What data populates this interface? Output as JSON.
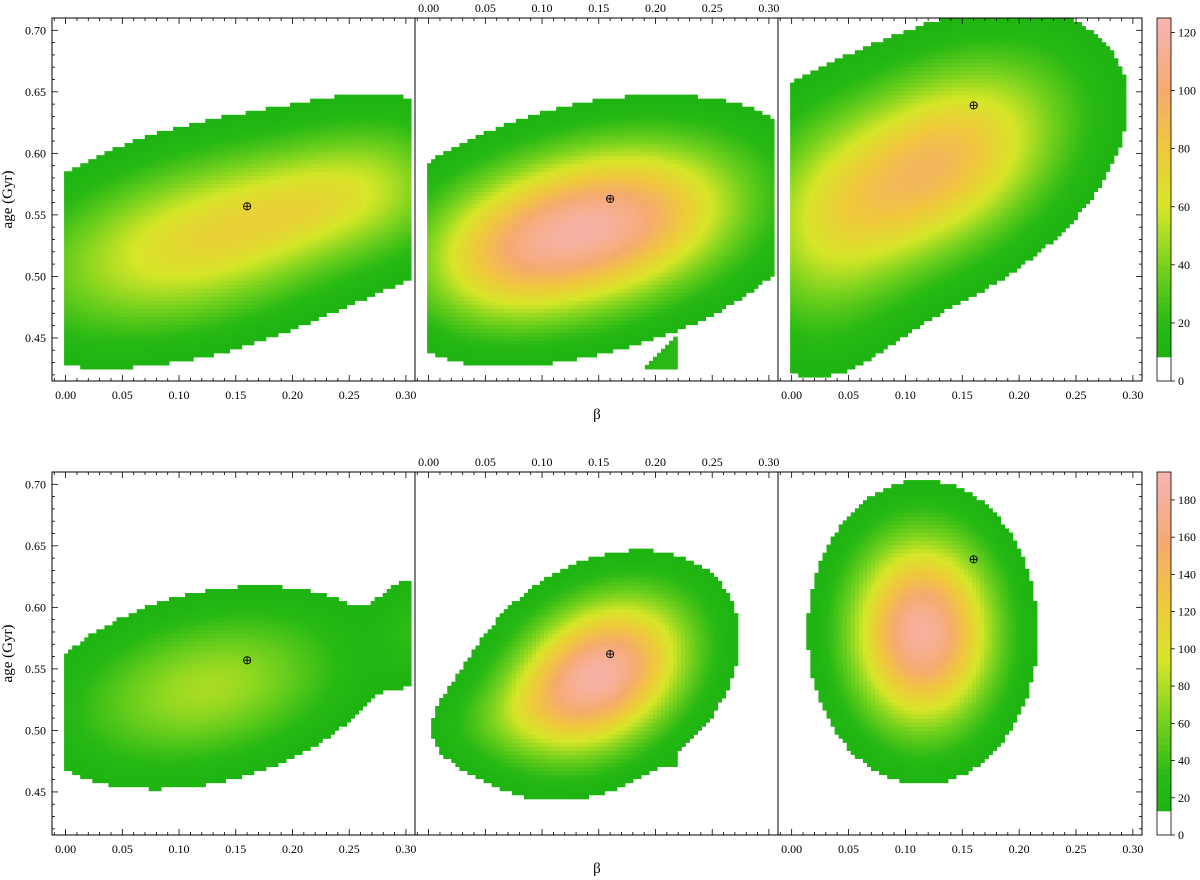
{
  "chart_data": {
    "type": "heatmap",
    "description_free": true,
    "rows": [
      {
        "ylabel": "age (Gyr)",
        "xlabel": "β",
        "ylim": [
          0.415,
          0.71
        ],
        "yticks": [
          "0.45",
          "0.50",
          "0.55",
          "0.60",
          "0.65",
          "0.70"
        ],
        "xlim": [
          -0.012,
          0.308
        ],
        "xticks": [
          "0.00",
          "0.05",
          "0.10",
          "0.15",
          "0.20",
          "0.25",
          "0.30"
        ],
        "colorbar": {
          "min": 0,
          "max": 125,
          "ticks": [
            "0",
            "20",
            "40",
            "60",
            "80",
            "100",
            "120"
          ]
        },
        "panels": [
          {
            "peak": 75,
            "marker": {
              "x": 0.16,
              "y": 0.557
            },
            "blobs": [
              {
                "cx": 0.12,
                "cy": 0.53,
                "sx": 0.105,
                "sy": 0.052,
                "rho": 0.4,
                "amp": 70
              },
              {
                "cx": 0.285,
                "cy": 0.575,
                "sx": 0.05,
                "sy": 0.04,
                "rho": 0.0,
                "amp": 26
              },
              {
                "cx": 0.215,
                "cy": 0.56,
                "sx": 0.05,
                "sy": 0.03,
                "rho": 0.2,
                "amp": 18
              }
            ]
          },
          {
            "peak": 118,
            "marker": {
              "x": 0.16,
              "y": 0.563
            },
            "blobs": [
              {
                "cx": 0.145,
                "cy": 0.54,
                "sx": 0.09,
                "sy": 0.048,
                "rho": 0.3,
                "amp": 116
              },
              {
                "cx": 0.055,
                "cy": 0.51,
                "sx": 0.05,
                "sy": 0.04,
                "rho": 0.0,
                "amp": 20
              }
            ],
            "corner": {
              "x0": 0.19,
              "x1": 0.22,
              "y0": 0.425,
              "y1": 0.455,
              "value": 20
            }
          },
          {
            "peak": 95,
            "marker": {
              "x": 0.16,
              "y": 0.639
            },
            "blobs": [
              {
                "cx": 0.125,
                "cy": 0.59,
                "sx": 0.08,
                "sy": 0.06,
                "rho": 0.4,
                "amp": 90
              },
              {
                "cx": 0.02,
                "cy": 0.53,
                "sx": 0.05,
                "sy": 0.07,
                "rho": 0.0,
                "amp": 28
              }
            ]
          }
        ]
      },
      {
        "ylabel": "age (Gyr)",
        "xlabel": "β",
        "ylim": [
          0.415,
          0.71
        ],
        "yticks": [
          "0.45",
          "0.50",
          "0.55",
          "0.60",
          "0.65",
          "0.70"
        ],
        "xlim": [
          -0.012,
          0.308
        ],
        "xticks": [
          "0.00",
          "0.05",
          "0.10",
          "0.15",
          "0.20",
          "0.25",
          "0.30"
        ],
        "colorbar": {
          "min": 0,
          "max": 195,
          "ticks": [
            "0",
            "20",
            "40",
            "60",
            "80",
            "100",
            "120",
            "140",
            "160",
            "180"
          ]
        },
        "panels": [
          {
            "peak": 80,
            "marker": {
              "x": 0.16,
              "y": 0.557
            },
            "blobs": [
              {
                "cx": 0.125,
                "cy": 0.535,
                "sx": 0.085,
                "sy": 0.045,
                "rho": 0.3,
                "amp": 78
              },
              {
                "cx": 0.305,
                "cy": 0.583,
                "sx": 0.02,
                "sy": 0.03,
                "rho": 0.0,
                "amp": 26
              }
            ]
          },
          {
            "peak": 185,
            "marker": {
              "x": 0.16,
              "y": 0.562
            },
            "blobs": [
              {
                "cx": 0.15,
                "cy": 0.545,
                "sx": 0.055,
                "sy": 0.045,
                "rho": 0.3,
                "amp": 185
              },
              {
                "cx": 0.06,
                "cy": 0.51,
                "sx": 0.045,
                "sy": 0.025,
                "rho": 0.3,
                "amp": 22
              }
            ],
            "corner": {
              "x0": 0.19,
              "x1": 0.22,
              "y0": 0.47,
              "y1": 0.49,
              "value": 20
            }
          },
          {
            "peak": 185,
            "marker": {
              "x": 0.16,
              "y": 0.639
            },
            "blobs": [
              {
                "cx": 0.115,
                "cy": 0.58,
                "sx": 0.045,
                "sy": 0.055,
                "rho": 0.0,
                "amp": 182
              }
            ],
            "bump": {
              "cx": 0.118,
              "cy": 0.482,
              "sx": 0.012,
              "sy": 0.006,
              "value": 22
            }
          }
        ]
      }
    ]
  }
}
